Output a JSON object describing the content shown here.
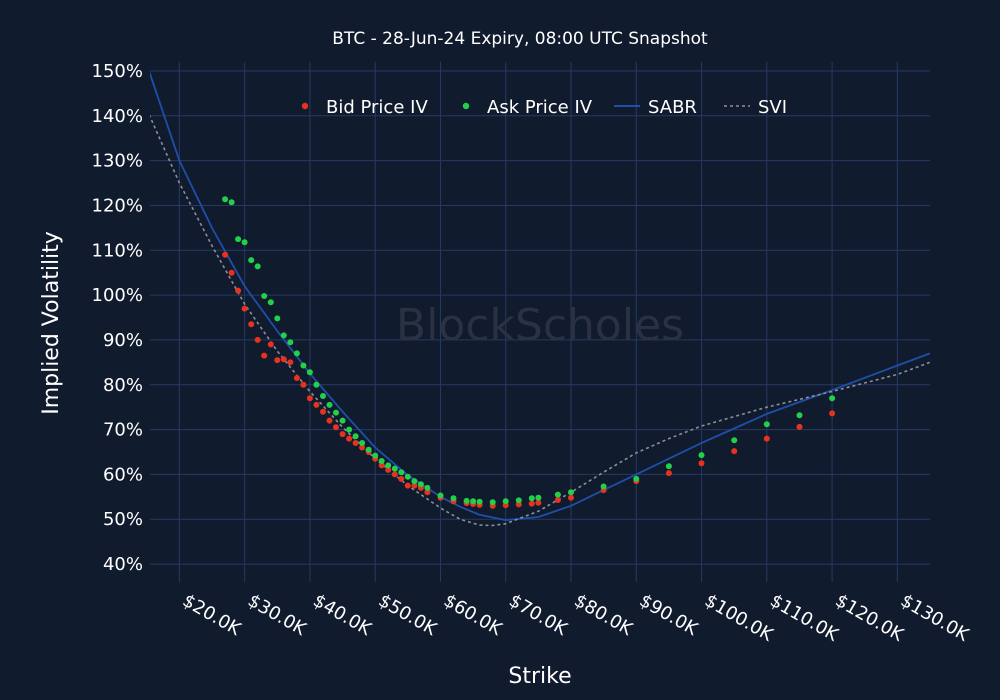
{
  "chart_data": {
    "type": "scatter",
    "title": "BTC - 28-Jun-24 Expiry, 08:00 UTC Snapshot",
    "xlabel": "Strike",
    "ylabel": "Implied Volatility",
    "watermark": "BlockScholes",
    "xlim": [
      15500,
      135000
    ],
    "ylim": [
      36,
      152
    ],
    "x_ticks": [
      20000,
      30000,
      40000,
      50000,
      60000,
      70000,
      80000,
      90000,
      100000,
      110000,
      120000,
      130000
    ],
    "x_tick_labels": [
      "$20.0K",
      "$30.0K",
      "$40.0K",
      "$50.0K",
      "$60.0K",
      "$70.0K",
      "$80.0K",
      "$90.0K",
      "$100.0K",
      "$110.0K",
      "$120.0K",
      "$130.0K"
    ],
    "y_ticks": [
      40,
      50,
      60,
      70,
      80,
      90,
      100,
      110,
      120,
      130,
      140,
      150
    ],
    "y_tick_labels": [
      "40%",
      "50%",
      "60%",
      "70%",
      "80%",
      "90%",
      "100%",
      "110%",
      "120%",
      "130%",
      "140%",
      "150%"
    ],
    "grid": true,
    "legend_position": "top-center",
    "colors": {
      "background": "#111b2e",
      "grid": "#243a66",
      "bid": "#e8321f",
      "ask": "#22d14a",
      "sabr": "#1f4fa8",
      "svi": "#8a8f99"
    },
    "series": [
      {
        "name": "Bid Price IV",
        "kind": "markers",
        "x": [
          27000,
          28000,
          29000,
          30000,
          31000,
          32000,
          33000,
          34000,
          35000,
          36000,
          37000,
          38000,
          39000,
          40000,
          41000,
          42000,
          43000,
          44000,
          45000,
          46000,
          47000,
          48000,
          49000,
          50000,
          51000,
          52000,
          53000,
          54000,
          55000,
          56000,
          57000,
          58000,
          60000,
          62000,
          64000,
          65000,
          66000,
          68000,
          70000,
          72000,
          74000,
          75000,
          78000,
          80000,
          85000,
          90000,
          95000,
          100000,
          105000,
          110000,
          115000,
          120000
        ],
        "y": [
          109.0,
          105.0,
          101.0,
          97.0,
          93.5,
          90.0,
          86.5,
          89.0,
          85.5,
          85.7,
          85.0,
          81.5,
          80.0,
          77.0,
          75.5,
          74.0,
          72.0,
          70.5,
          69.0,
          68.0,
          67.0,
          66.0,
          65.0,
          63.5,
          62.0,
          61.0,
          60.0,
          59.0,
          57.5,
          57.5,
          57.0,
          56.0,
          54.8,
          54.0,
          53.6,
          53.4,
          53.2,
          53.0,
          53.1,
          53.3,
          53.5,
          53.7,
          54.3,
          54.8,
          56.5,
          58.5,
          60.3,
          62.5,
          65.2,
          68.0,
          70.6,
          73.6
        ]
      },
      {
        "name": "Ask Price IV",
        "kind": "markers",
        "x": [
          27000,
          28000,
          29000,
          30000,
          31000,
          32000,
          33000,
          34000,
          35000,
          36000,
          37000,
          38000,
          39000,
          40000,
          41000,
          42000,
          43000,
          44000,
          45000,
          46000,
          47000,
          48000,
          49000,
          50000,
          51000,
          52000,
          53000,
          54000,
          55000,
          56000,
          57000,
          58000,
          60000,
          62000,
          64000,
          65000,
          66000,
          68000,
          70000,
          72000,
          74000,
          75000,
          78000,
          80000,
          85000,
          90000,
          95000,
          100000,
          105000,
          110000,
          115000,
          120000
        ],
        "y": [
          121.4,
          120.7,
          112.5,
          111.8,
          107.8,
          106.4,
          99.8,
          98.4,
          94.8,
          91.0,
          89.5,
          87.0,
          84.3,
          82.8,
          80.0,
          77.5,
          75.5,
          73.8,
          72.0,
          70.0,
          68.5,
          67.0,
          65.5,
          64.2,
          63.0,
          62.0,
          61.3,
          60.5,
          59.5,
          58.5,
          57.8,
          57.0,
          55.3,
          54.7,
          54.1,
          54.0,
          53.9,
          53.8,
          54.0,
          54.2,
          54.7,
          54.8,
          55.5,
          56.0,
          57.3,
          59.0,
          61.8,
          64.3,
          67.6,
          71.2,
          73.2,
          77.0
        ]
      },
      {
        "name": "SABR",
        "kind": "line",
        "x": [
          15000,
          20000,
          25000,
          30000,
          35000,
          40000,
          45000,
          50000,
          55000,
          60000,
          63000,
          66000,
          70000,
          75000,
          80000,
          85000,
          90000,
          95000,
          100000,
          110000,
          120000,
          130000,
          135000
        ],
        "y": [
          151.5,
          130.0,
          115.0,
          102.0,
          92.0,
          82.5,
          74.0,
          66.0,
          59.8,
          55.0,
          52.8,
          51.0,
          49.8,
          50.5,
          53.0,
          56.5,
          60.0,
          63.5,
          67.0,
          73.5,
          78.8,
          84.3,
          87.0
        ]
      },
      {
        "name": "SVI",
        "kind": "dotted-line",
        "x": [
          15000,
          20000,
          25000,
          30000,
          35000,
          40000,
          45000,
          50000,
          55000,
          60000,
          63000,
          66000,
          68000,
          70000,
          75000,
          80000,
          85000,
          90000,
          95000,
          100000,
          110000,
          120000,
          130000,
          135000
        ],
        "y": [
          141.5,
          125.0,
          111.0,
          98.0,
          87.5,
          78.5,
          70.5,
          63.5,
          57.5,
          52.5,
          50.0,
          48.7,
          48.6,
          49.0,
          51.8,
          56.0,
          60.5,
          64.8,
          68.0,
          70.8,
          75.0,
          78.5,
          82.3,
          85.0
        ]
      }
    ]
  }
}
